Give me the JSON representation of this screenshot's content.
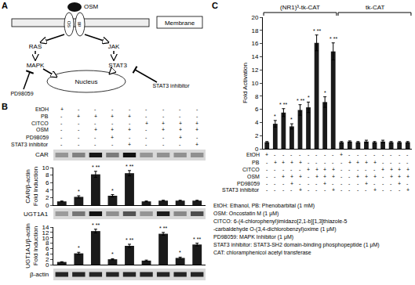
{
  "panel_labels": [
    "A",
    "B",
    "C"
  ],
  "diagram": {
    "ligand": "OSM",
    "receptor": [
      "OS",
      "gp"
    ],
    "membrane": "Membrane",
    "left_path": [
      "RAS",
      "MAPK"
    ],
    "right_path": [
      "JAK",
      "STAT3"
    ],
    "nucleus": "Nucleus",
    "inhibitors": [
      "PD98059",
      "STAT3 inhibitor"
    ]
  },
  "panel_b": {
    "blots": [
      "CAR",
      "UGT1A1",
      "β-actin"
    ],
    "treatments": [
      {
        "name": "EtOH",
        "signs": [
          "+",
          "-",
          "-",
          "-",
          "-",
          "-",
          "-",
          "-",
          "-"
        ]
      },
      {
        "name": "PB",
        "signs": [
          "-",
          "+",
          "+",
          "+",
          "+",
          "-",
          "-",
          "-",
          "-"
        ]
      },
      {
        "name": "CITCO",
        "signs": [
          "-",
          "-",
          "-",
          "-",
          "-",
          "+",
          "+",
          "+",
          "+"
        ]
      },
      {
        "name": "OSM",
        "signs": [
          "-",
          "-",
          "+",
          "+",
          "+",
          "-",
          "+",
          "+",
          "+"
        ]
      },
      {
        "name": "PD98059",
        "signs": [
          "-",
          "-",
          "-",
          "+",
          "-",
          "-",
          "-",
          "+",
          "-"
        ]
      },
      {
        "name": "STAT3 inhibitor",
        "signs": [
          "-",
          "-",
          "-",
          "-",
          "+",
          "-",
          "-",
          "-",
          "+"
        ]
      }
    ]
  },
  "chart_data": [
    {
      "type": "bar",
      "ylabel": "CAR/β-actin\nFold Induction",
      "categories": [
        null,
        null,
        null,
        null,
        null,
        null,
        null,
        null,
        null
      ],
      "values": [
        1,
        2.2,
        8.2,
        2.5,
        8.5,
        1,
        1.2,
        1.2,
        1.2
      ],
      "errors": [
        0.1,
        0.3,
        0.8,
        0.3,
        0.7,
        0.1,
        0.1,
        0.1,
        0.1
      ],
      "significance": [
        null,
        "*",
        "* **",
        "*",
        "* **",
        null,
        null,
        null,
        null
      ],
      "color": "#1a1a1a",
      "ylim": [
        0,
        10
      ],
      "yticks": [
        0,
        2,
        4,
        6,
        8,
        10
      ],
      "grid": false,
      "tick_labels": "y"
    },
    {
      "type": "bar",
      "ylabel": "UGT1A1/β-actin\nFold Induction",
      "categories": [
        null,
        null,
        null,
        null,
        null,
        null,
        null,
        null,
        null
      ],
      "values": [
        1,
        4.2,
        12.5,
        2,
        7,
        1.5,
        11.5,
        2.5,
        7.5
      ],
      "errors": [
        0.1,
        0.4,
        0.7,
        0.2,
        0.6,
        0.2,
        0.5,
        0.3,
        0.5
      ],
      "significance": [
        null,
        "*",
        "* **",
        "*",
        "* **",
        null,
        "* **",
        "*",
        "* **"
      ],
      "color": "#1a1a1a",
      "ylim": [
        0,
        14
      ],
      "yticks": [
        0,
        2,
        4,
        6,
        8,
        10,
        12,
        14
      ],
      "grid": false,
      "tick_labels": "y"
    },
    {
      "type": "bar",
      "ylabel": "Fold Activation",
      "groups": [
        {
          "label": "(NR1)³-tk-CAT",
          "size": 9
        },
        {
          "label": "tk-CAT",
          "size": 9
        }
      ],
      "categories": [
        null,
        null,
        null,
        null,
        null,
        null,
        null,
        null,
        null,
        null,
        null,
        null,
        null,
        null,
        null,
        null,
        null,
        null
      ],
      "values": [
        1,
        3.8,
        5.5,
        3.4,
        5.9,
        6.3,
        16.1,
        7.1,
        14.8,
        1,
        1.1,
        1,
        1.1,
        1,
        1.1,
        1,
        1,
        1
      ],
      "errors": [
        0.1,
        0.5,
        0.6,
        0.4,
        0.8,
        0.8,
        1.2,
        0.8,
        1.3,
        0.1,
        0.1,
        0.1,
        0.2,
        0.1,
        0.2,
        0.1,
        0.1,
        0.1
      ],
      "significance": [
        null,
        "*",
        "* **",
        "*",
        "* **",
        "*",
        "* **",
        "*",
        "* **",
        null,
        null,
        null,
        null,
        null,
        null,
        null,
        null,
        null
      ],
      "treatments": [
        {
          "name": "EtOH",
          "signs": [
            "+",
            "-",
            "-",
            "-",
            "-",
            "-",
            "-",
            "-",
            "-",
            "+",
            "-",
            "-",
            "-",
            "-",
            "-",
            "-",
            "-",
            "-"
          ]
        },
        {
          "name": "PB",
          "signs": [
            "-",
            "+",
            "+",
            "+",
            "+",
            "-",
            "-",
            "-",
            "-",
            "-",
            "+",
            "+",
            "+",
            "+",
            "-",
            "-",
            "-",
            "-"
          ]
        },
        {
          "name": "CITCO",
          "signs": [
            "-",
            "-",
            "-",
            "-",
            "-",
            "+",
            "+",
            "+",
            "+",
            "-",
            "-",
            "-",
            "-",
            "-",
            "+",
            "+",
            "+",
            "+"
          ]
        },
        {
          "name": "OSM",
          "signs": [
            "-",
            "-",
            "+",
            "+",
            "+",
            "-",
            "+",
            "+",
            "+",
            "-",
            "-",
            "+",
            "+",
            "+",
            "-",
            "+",
            "+",
            "+"
          ]
        },
        {
          "name": "PD98059",
          "signs": [
            "-",
            "-",
            "-",
            "+",
            "-",
            "-",
            "-",
            "+",
            "-",
            "-",
            "-",
            "-",
            "+",
            "-",
            "-",
            "-",
            "+",
            "-"
          ]
        },
        {
          "name": "STAT3 inhibitor",
          "signs": [
            "-",
            "-",
            "-",
            "-",
            "+",
            "-",
            "-",
            "-",
            "+",
            "-",
            "-",
            "-",
            "-",
            "+",
            "-",
            "-",
            "-",
            "+"
          ]
        }
      ],
      "color": "#1a1a1a",
      "ylim": [
        0,
        20
      ],
      "yticks": [
        0,
        2,
        4,
        6,
        8,
        10,
        12,
        14,
        16,
        18,
        20
      ],
      "grid": false,
      "tick_labels": "y"
    }
  ],
  "legend_text": [
    "EtOH: Ethanol, PB: Phenobarbital (1 mM)",
    "OSM: Oncostatin M (1 μM)",
    "CITCO: 6-(4-chlorophenyl)imidazo[2,1-b][1,3]thiazole-5",
    "-carbaldehyde O-(3,4-dichlorobenzyl)oxime (1 μM)",
    "PD98059: MAPK Inhibitor (1 μM)",
    "STAT3 inhibitor: STAT3-SH2 domain-binding phosphopeptide (1 μM)",
    "CAT: chloramphenicol acetyl transferase"
  ]
}
